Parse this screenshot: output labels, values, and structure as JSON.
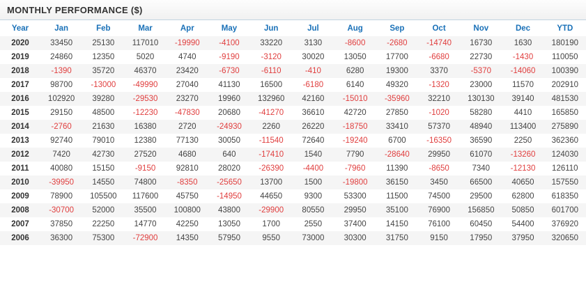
{
  "title": "MONTHLY PERFORMANCE ($)",
  "colors": {
    "header_blue": "#1a71b8",
    "negative_red": "#e03e3e",
    "positive_text": "#444444",
    "stripe_gray": "#f5f5f5",
    "title_border": "#c2d3e1"
  },
  "table": {
    "columns": [
      "Year",
      "Jan",
      "Feb",
      "Mar",
      "Apr",
      "May",
      "Jun",
      "Jul",
      "Aug",
      "Sep",
      "Oct",
      "Nov",
      "Dec",
      "YTD"
    ],
    "rows": [
      {
        "year": "2020",
        "values": [
          33450,
          25130,
          117010,
          -19990,
          -4100,
          33220,
          3130,
          -8600,
          -2680,
          -14740,
          16730,
          1630,
          180190
        ]
      },
      {
        "year": "2019",
        "values": [
          24860,
          12350,
          5020,
          4740,
          -9190,
          -3120,
          30020,
          13050,
          17700,
          -6680,
          22730,
          -1430,
          110050
        ]
      },
      {
        "year": "2018",
        "values": [
          -1390,
          35720,
          46370,
          23420,
          -6730,
          -6110,
          -410,
          6280,
          19300,
          3370,
          -5370,
          -14060,
          100390
        ]
      },
      {
        "year": "2017",
        "values": [
          98700,
          -13000,
          -49990,
          27040,
          41130,
          16500,
          -6180,
          6140,
          49320,
          -1320,
          23000,
          11570,
          202910
        ]
      },
      {
        "year": "2016",
        "values": [
          102920,
          39280,
          -29530,
          23270,
          19960,
          132960,
          42160,
          -15010,
          -35960,
          32210,
          130130,
          39140,
          481530
        ]
      },
      {
        "year": "2015",
        "values": [
          29150,
          48500,
          -12230,
          -47830,
          20680,
          -41270,
          36610,
          42720,
          27850,
          -1020,
          58280,
          4410,
          165850
        ]
      },
      {
        "year": "2014",
        "values": [
          -2760,
          21630,
          16380,
          2720,
          -24930,
          2260,
          26220,
          -18750,
          33410,
          57370,
          48940,
          113400,
          275890
        ]
      },
      {
        "year": "2013",
        "values": [
          92740,
          79010,
          12380,
          77130,
          30050,
          -11540,
          72640,
          -19240,
          6700,
          -16350,
          36590,
          2250,
          362360
        ]
      },
      {
        "year": "2012",
        "values": [
          7420,
          42730,
          27520,
          4680,
          640,
          -17410,
          1540,
          7790,
          -28640,
          29950,
          61070,
          -13260,
          124030
        ]
      },
      {
        "year": "2011",
        "values": [
          40080,
          15150,
          -9150,
          92810,
          28020,
          -26390,
          -4400,
          -7960,
          11390,
          -8650,
          7340,
          -12130,
          126110
        ]
      },
      {
        "year": "2010",
        "values": [
          -39950,
          14550,
          74800,
          -8350,
          -25650,
          13700,
          1500,
          -19800,
          36150,
          3450,
          66500,
          40650,
          157550
        ]
      },
      {
        "year": "2009",
        "values": [
          78900,
          105500,
          117600,
          45750,
          -14950,
          44650,
          9300,
          53300,
          11500,
          74500,
          29500,
          62800,
          618350
        ]
      },
      {
        "year": "2008",
        "values": [
          -30700,
          52000,
          35500,
          100800,
          43800,
          -29900,
          80550,
          29950,
          35100,
          76900,
          156850,
          50850,
          601700
        ]
      },
      {
        "year": "2007",
        "values": [
          37850,
          22250,
          14770,
          42250,
          13050,
          1700,
          2550,
          37400,
          14150,
          76100,
          60450,
          54400,
          376920
        ]
      },
      {
        "year": "2006",
        "values": [
          36300,
          75300,
          -72900,
          14350,
          57950,
          9550,
          73000,
          30300,
          31750,
          9150,
          17950,
          37950,
          320650
        ]
      }
    ]
  }
}
